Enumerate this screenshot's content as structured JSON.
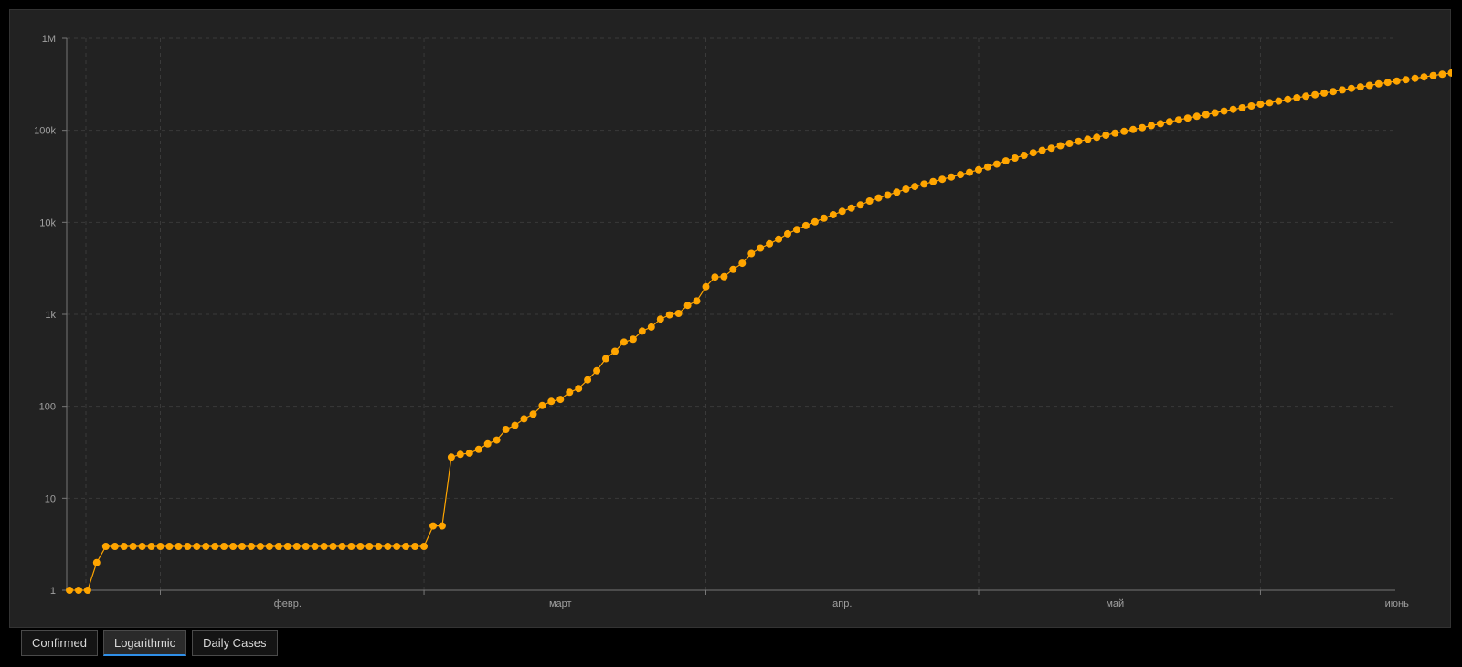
{
  "colors": {
    "background": "#000000",
    "panel": "#222222",
    "series": "#ffa500",
    "grid": "#3a3a3a",
    "axis": "#777777",
    "tick_text": "#a0a0a0",
    "tab_active_accent": "#2f8fe8"
  },
  "tabs": [
    {
      "label": "Confirmed",
      "active": false
    },
    {
      "label": "Logarithmic",
      "active": true
    },
    {
      "label": "Daily Cases",
      "active": false
    }
  ],
  "chart_data": {
    "type": "line",
    "y_scale": "log",
    "ylim": [
      1,
      1000000
    ],
    "y_ticks": [
      {
        "value": 1,
        "label": "1"
      },
      {
        "value": 10,
        "label": "10"
      },
      {
        "value": 100,
        "label": "100"
      },
      {
        "value": 1000,
        "label": "1k"
      },
      {
        "value": 10000,
        "label": "10k"
      },
      {
        "value": 100000,
        "label": "100k"
      },
      {
        "value": 1000000,
        "label": "1M"
      }
    ],
    "x_start": "2020-01-22",
    "x_end": "2020-06-15",
    "x_ticks": [
      {
        "date": "2020-02-01",
        "label": ""
      },
      {
        "date": "2020-03-01",
        "label": ""
      },
      {
        "date": "2020-04-01",
        "label": ""
      },
      {
        "date": "2020-05-01",
        "label": ""
      },
      {
        "date": "2020-06-01",
        "label": ""
      }
    ],
    "x_tick_labels": [
      {
        "date": "2020-02-15",
        "label": "февр."
      },
      {
        "date": "2020-03-16",
        "label": "март"
      },
      {
        "date": "2020-04-16",
        "label": "апр."
      },
      {
        "date": "2020-05-16",
        "label": "май"
      },
      {
        "date": "2020-06-16",
        "label": "июнь"
      }
    ],
    "grid": true,
    "legend": "none",
    "series": [
      {
        "color": "#ffa500",
        "points": [
          [
            "2020-01-22",
            1
          ],
          [
            "2020-01-23",
            1
          ],
          [
            "2020-01-24",
            1
          ],
          [
            "2020-01-25",
            2
          ],
          [
            "2020-01-26",
            3
          ],
          [
            "2020-01-27",
            3
          ],
          [
            "2020-01-28",
            3
          ],
          [
            "2020-01-29",
            3
          ],
          [
            "2020-01-30",
            3
          ],
          [
            "2020-01-31",
            3
          ],
          [
            "2020-02-01",
            3
          ],
          [
            "2020-02-02",
            3
          ],
          [
            "2020-02-03",
            3
          ],
          [
            "2020-02-04",
            3
          ],
          [
            "2020-02-05",
            3
          ],
          [
            "2020-02-06",
            3
          ],
          [
            "2020-02-07",
            3
          ],
          [
            "2020-02-08",
            3
          ],
          [
            "2020-02-09",
            3
          ],
          [
            "2020-02-10",
            3
          ],
          [
            "2020-02-11",
            3
          ],
          [
            "2020-02-12",
            3
          ],
          [
            "2020-02-13",
            3
          ],
          [
            "2020-02-14",
            3
          ],
          [
            "2020-02-15",
            3
          ],
          [
            "2020-02-16",
            3
          ],
          [
            "2020-02-17",
            3
          ],
          [
            "2020-02-18",
            3
          ],
          [
            "2020-02-19",
            3
          ],
          [
            "2020-02-20",
            3
          ],
          [
            "2020-02-21",
            3
          ],
          [
            "2020-02-22",
            3
          ],
          [
            "2020-02-23",
            3
          ],
          [
            "2020-02-24",
            3
          ],
          [
            "2020-02-25",
            3
          ],
          [
            "2020-02-26",
            3
          ],
          [
            "2020-02-27",
            3
          ],
          [
            "2020-02-28",
            3
          ],
          [
            "2020-02-29",
            3
          ],
          [
            "2020-03-01",
            3
          ],
          [
            "2020-03-02",
            5
          ],
          [
            "2020-03-03",
            5
          ],
          [
            "2020-03-04",
            28
          ],
          [
            "2020-03-05",
            30
          ],
          [
            "2020-03-06",
            31
          ],
          [
            "2020-03-07",
            34
          ],
          [
            "2020-03-08",
            39
          ],
          [
            "2020-03-09",
            43
          ],
          [
            "2020-03-10",
            56
          ],
          [
            "2020-03-11",
            62
          ],
          [
            "2020-03-12",
            73
          ],
          [
            "2020-03-13",
            82
          ],
          [
            "2020-03-14",
            102
          ],
          [
            "2020-03-15",
            113
          ],
          [
            "2020-03-16",
            119
          ],
          [
            "2020-03-17",
            142
          ],
          [
            "2020-03-18",
            156
          ],
          [
            "2020-03-19",
            194
          ],
          [
            "2020-03-20",
            244
          ],
          [
            "2020-03-21",
            330
          ],
          [
            "2020-03-22",
            396
          ],
          [
            "2020-03-23",
            499
          ],
          [
            "2020-03-24",
            536
          ],
          [
            "2020-03-25",
            657
          ],
          [
            "2020-03-26",
            727
          ],
          [
            "2020-03-27",
            887
          ],
          [
            "2020-03-28",
            987
          ],
          [
            "2020-03-29",
            1024
          ],
          [
            "2020-03-30",
            1251
          ],
          [
            "2020-03-31",
            1397
          ],
          [
            "2020-04-01",
            1998
          ],
          [
            "2020-04-02",
            2543
          ],
          [
            "2020-04-03",
            2567
          ],
          [
            "2020-04-04",
            3082
          ],
          [
            "2020-04-05",
            3588
          ],
          [
            "2020-04-06",
            4577
          ],
          [
            "2020-04-07",
            5252
          ],
          [
            "2020-04-08",
            5843
          ],
          [
            "2020-04-09",
            6548
          ],
          [
            "2020-04-10",
            7497
          ],
          [
            "2020-04-11",
            8353
          ],
          [
            "2020-04-12",
            9222
          ],
          [
            "2020-04-13",
            10131
          ],
          [
            "2020-04-14",
            11102
          ],
          [
            "2020-04-15",
            12102
          ],
          [
            "2020-04-16",
            13173
          ],
          [
            "2020-04-17",
            14308
          ],
          [
            "2020-04-18",
            15466
          ],
          [
            "2020-04-19",
            17041
          ],
          [
            "2020-04-20",
            18430
          ],
          [
            "2020-04-21",
            19808
          ],
          [
            "2020-04-22",
            21303
          ],
          [
            "2020-04-23",
            22938
          ],
          [
            "2020-04-24",
            24509
          ],
          [
            "2020-04-25",
            26102
          ],
          [
            "2020-04-26",
            27740
          ],
          [
            "2020-04-27",
            29410
          ],
          [
            "2020-04-28",
            31145
          ],
          [
            "2020-04-29",
            33000
          ],
          [
            "2020-04-30",
            35000
          ],
          [
            "2020-05-01",
            37300
          ],
          [
            "2020-05-02",
            40000
          ],
          [
            "2020-05-03",
            43000
          ],
          [
            "2020-05-04",
            46500
          ],
          [
            "2020-05-05",
            50000
          ],
          [
            "2020-05-06",
            53500
          ],
          [
            "2020-05-07",
            57000
          ],
          [
            "2020-05-08",
            60500
          ],
          [
            "2020-05-09",
            64000
          ],
          [
            "2020-05-10",
            68000
          ],
          [
            "2020-05-11",
            72000
          ],
          [
            "2020-05-12",
            76000
          ],
          [
            "2020-05-13",
            80000
          ],
          [
            "2020-05-14",
            84000
          ],
          [
            "2020-05-15",
            88500
          ],
          [
            "2020-05-16",
            93000
          ],
          [
            "2020-05-17",
            97500
          ],
          [
            "2020-05-18",
            102000
          ],
          [
            "2020-05-19",
            107000
          ],
          [
            "2020-05-20",
            112500
          ],
          [
            "2020-05-21",
            118000
          ],
          [
            "2020-05-22",
            124000
          ],
          [
            "2020-05-23",
            130000
          ],
          [
            "2020-05-24",
            136000
          ],
          [
            "2020-05-25",
            142000
          ],
          [
            "2020-05-26",
            148000
          ],
          [
            "2020-05-27",
            155000
          ],
          [
            "2020-05-28",
            162000
          ],
          [
            "2020-05-29",
            169000
          ],
          [
            "2020-05-30",
            176000
          ],
          [
            "2020-05-31",
            184000
          ],
          [
            "2020-06-01",
            192000
          ],
          [
            "2020-06-02",
            200000
          ],
          [
            "2020-06-03",
            208000
          ],
          [
            "2020-06-04",
            217000
          ],
          [
            "2020-06-05",
            226000
          ],
          [
            "2020-06-06",
            235000
          ],
          [
            "2020-06-07",
            244000
          ],
          [
            "2020-06-08",
            254000
          ],
          [
            "2020-06-09",
            264000
          ],
          [
            "2020-06-10",
            275000
          ],
          [
            "2020-06-11",
            286000
          ],
          [
            "2020-06-12",
            297000
          ],
          [
            "2020-06-13",
            308000
          ],
          [
            "2020-06-14",
            320000
          ],
          [
            "2020-06-15",
            332000
          ],
          [
            "2020-06-16",
            344000
          ],
          [
            "2020-06-17",
            356000
          ],
          [
            "2020-06-18",
            368000
          ],
          [
            "2020-06-19",
            381000
          ],
          [
            "2020-06-20",
            394000
          ],
          [
            "2020-06-21",
            407000
          ],
          [
            "2020-06-22",
            420000
          ],
          [
            "2020-06-23",
            433000
          ],
          [
            "2020-06-24",
            447000
          ],
          [
            "2020-06-25",
            461000
          ]
        ]
      }
    ]
  }
}
